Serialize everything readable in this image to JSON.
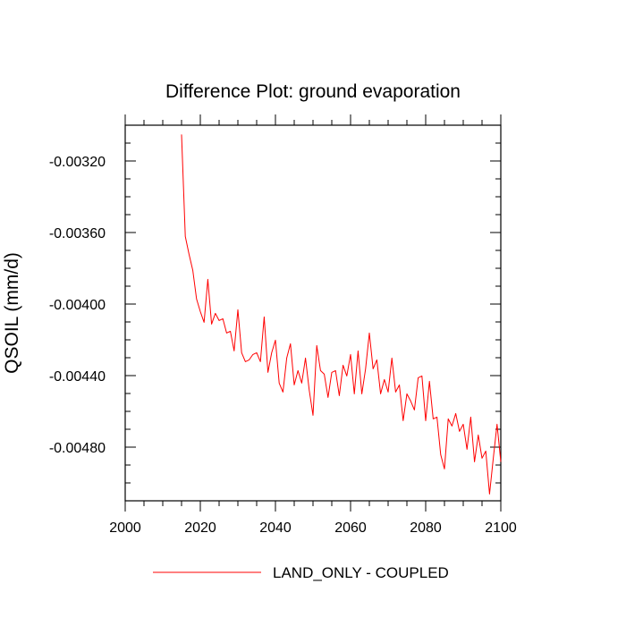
{
  "chart_data": {
    "type": "line",
    "title": "Difference Plot: ground evaporation",
    "xlabel": "",
    "ylabel": "QSOIL  (mm/d)",
    "xlim": [
      2000,
      2100
    ],
    "ylim": [
      -0.0051,
      -0.003
    ],
    "x_ticks": [
      2000,
      2020,
      2040,
      2060,
      2080,
      2100
    ],
    "x_tick_labels": [
      "2000",
      "2020",
      "2040",
      "2060",
      "2080",
      "2100"
    ],
    "y_ticks": [
      -0.0032,
      -0.0036,
      -0.004,
      -0.0044,
      -0.0048
    ],
    "y_tick_labels": [
      "-0.00320",
      "-0.00360",
      "-0.00400",
      "-0.00440",
      "-0.00480"
    ],
    "legend_position": "bottom",
    "series": [
      {
        "name": "LAND_ONLY - COUPLED",
        "color": "#ff0000",
        "x": [
          2015,
          2016,
          2017,
          2018,
          2019,
          2020,
          2021,
          2022,
          2023,
          2024,
          2025,
          2026,
          2027,
          2028,
          2029,
          2030,
          2031,
          2032,
          2033,
          2034,
          2035,
          2036,
          2037,
          2038,
          2039,
          2040,
          2041,
          2042,
          2043,
          2044,
          2045,
          2046,
          2047,
          2048,
          2049,
          2050,
          2051,
          2052,
          2053,
          2054,
          2055,
          2056,
          2057,
          2058,
          2059,
          2060,
          2061,
          2062,
          2063,
          2064,
          2065,
          2066,
          2067,
          2068,
          2069,
          2070,
          2071,
          2072,
          2073,
          2074,
          2075,
          2076,
          2077,
          2078,
          2079,
          2080,
          2081,
          2082,
          2083,
          2084,
          2085,
          2086,
          2087,
          2088,
          2089,
          2090,
          2091,
          2092,
          2093,
          2094,
          2095,
          2096,
          2097,
          2098,
          2099,
          2100
        ],
        "values": [
          -0.003052,
          -0.003622,
          -0.003722,
          -0.003812,
          -0.003972,
          -0.004042,
          -0.004102,
          -0.003862,
          -0.004112,
          -0.004052,
          -0.004092,
          -0.004082,
          -0.004162,
          -0.004152,
          -0.004262,
          -0.004032,
          -0.004272,
          -0.004322,
          -0.004312,
          -0.004282,
          -0.004272,
          -0.004322,
          -0.004072,
          -0.004382,
          -0.004272,
          -0.004202,
          -0.004442,
          -0.004492,
          -0.004302,
          -0.004222,
          -0.004452,
          -0.004372,
          -0.004442,
          -0.004302,
          -0.004482,
          -0.004622,
          -0.004232,
          -0.004372,
          -0.004392,
          -0.004522,
          -0.004382,
          -0.004372,
          -0.004512,
          -0.004342,
          -0.004402,
          -0.004282,
          -0.004502,
          -0.004262,
          -0.004502,
          -0.004362,
          -0.004162,
          -0.004362,
          -0.004312,
          -0.004502,
          -0.004422,
          -0.004492,
          -0.004302,
          -0.004492,
          -0.004452,
          -0.004652,
          -0.004502,
          -0.004542,
          -0.004592,
          -0.004412,
          -0.004402,
          -0.004652,
          -0.004432,
          -0.004642,
          -0.004632,
          -0.004842,
          -0.004922,
          -0.004642,
          -0.004682,
          -0.004612,
          -0.004712,
          -0.004672,
          -0.004812,
          -0.004632,
          -0.004882,
          -0.004732,
          -0.004862,
          -0.004822,
          -0.005062,
          -0.004862,
          -0.004672,
          -0.004882
        ]
      }
    ]
  }
}
